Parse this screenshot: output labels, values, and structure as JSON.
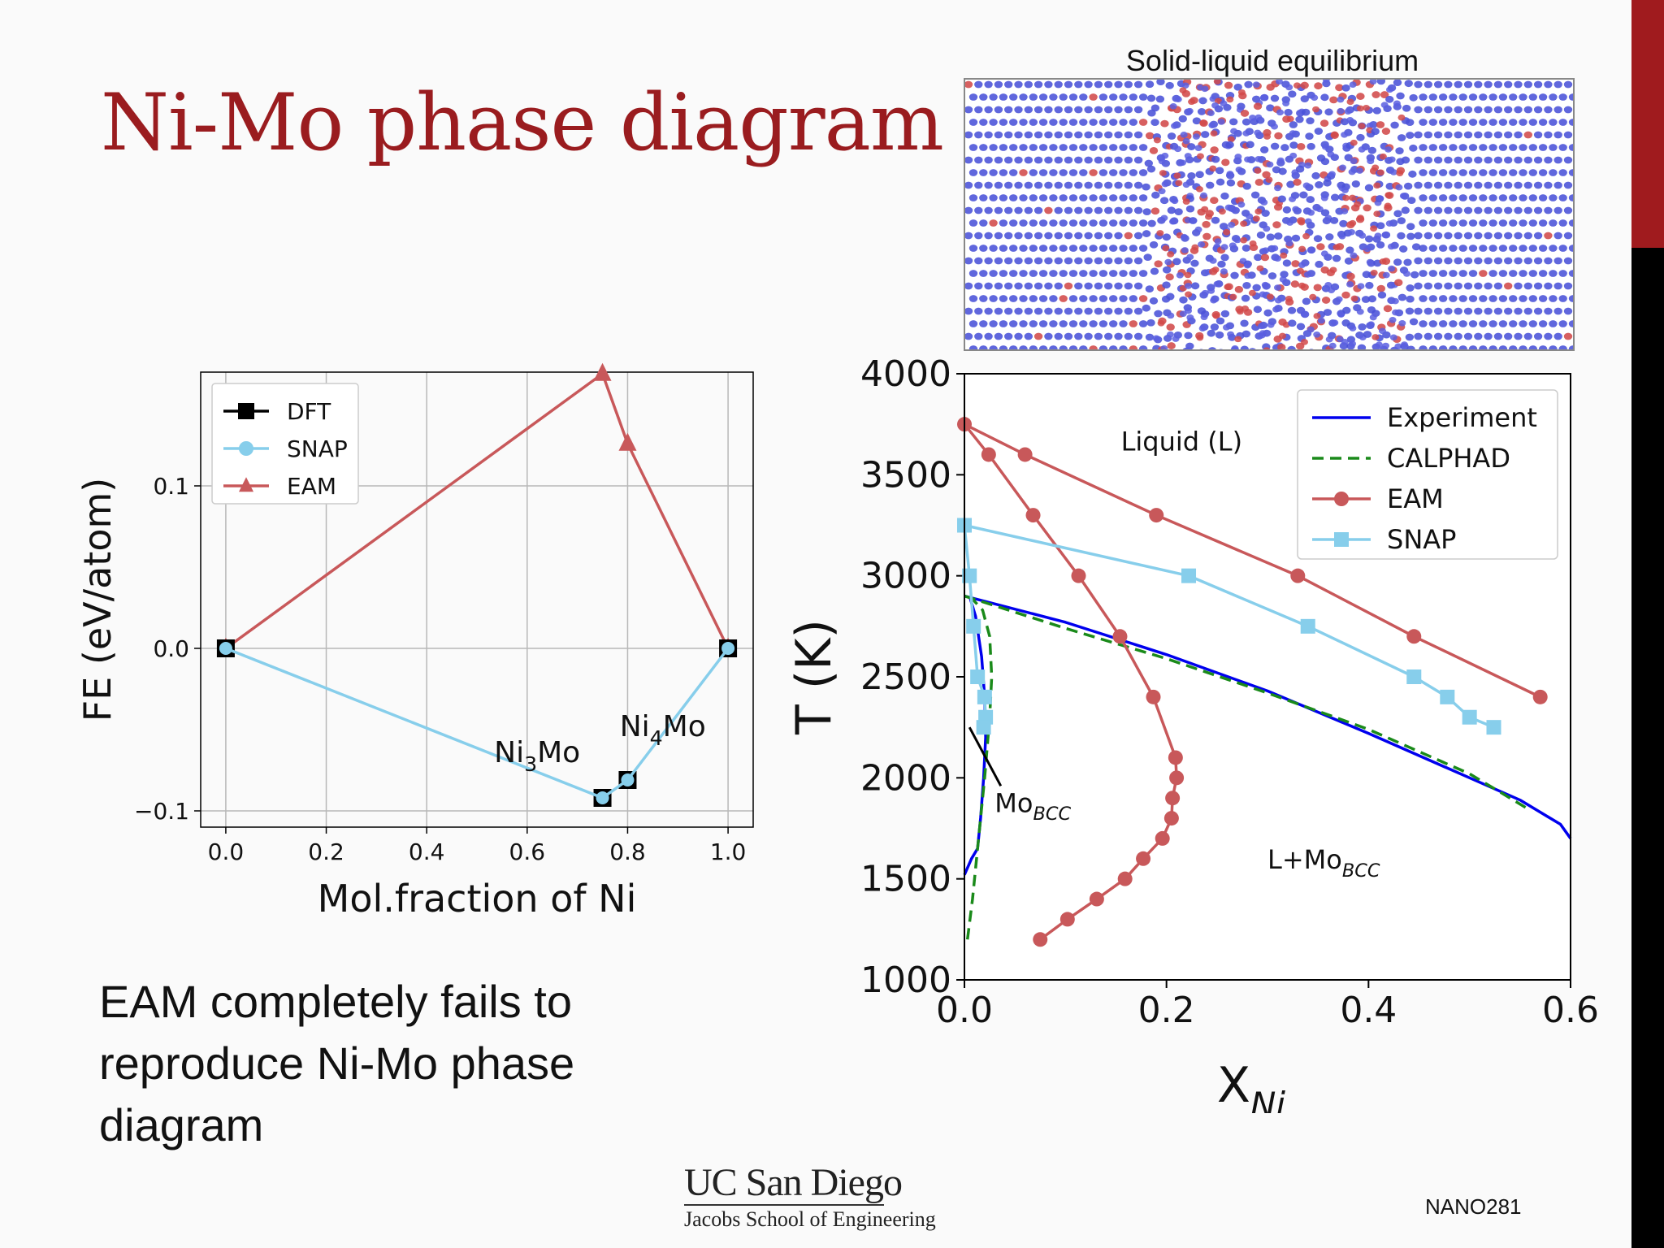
{
  "slide": {
    "title": "Ni-Mo phase diagram",
    "body_text": "EAM completely fails to reproduce Ni-Mo phase diagram",
    "logo_main": "UC San Diego",
    "logo_sub": "Jacobs School of Engineering",
    "course": "NANO281",
    "sim_caption": "Solid-liquid equilibrium",
    "accent_color": "#9a1c1f"
  },
  "chart_data": [
    {
      "type": "line",
      "xlabel": "Mol.fraction of Ni",
      "ylabel": "FE (eV/atom)",
      "xlim": [
        -0.05,
        1.05
      ],
      "ylim": [
        -0.11,
        0.17
      ],
      "xticks": [
        "0.0",
        "0.2",
        "0.4",
        "0.6",
        "0.8",
        "1.0"
      ],
      "yticks": [
        "−0.1",
        "0.0",
        "0.1"
      ],
      "grid": true,
      "legend_position": "top-left",
      "series": [
        {
          "name": "DFT",
          "color": "#000000",
          "marker": "square",
          "x": [
            0.0,
            0.75,
            0.8,
            1.0
          ],
          "y": [
            0.0,
            -0.092,
            -0.081,
            0.0
          ]
        },
        {
          "name": "SNAP",
          "color": "#87ceeb",
          "marker": "circle",
          "x": [
            0.0,
            0.75,
            0.8,
            1.0
          ],
          "y": [
            0.0,
            -0.092,
            -0.081,
            0.0
          ]
        },
        {
          "name": "EAM",
          "color": "#c8585a",
          "marker": "triangle",
          "x": [
            0.0,
            0.75,
            0.8,
            1.0
          ],
          "y": [
            0.0,
            0.169,
            0.126,
            0.0
          ]
        }
      ],
      "annotations": [
        {
          "base": "Ni",
          "sub": "3",
          "rest": "Mo",
          "x": 0.62,
          "y": -0.07
        },
        {
          "base": "Ni",
          "sub": "4",
          "rest": "Mo",
          "x": 0.87,
          "y": -0.054
        }
      ]
    },
    {
      "type": "line",
      "xlabel_base": "X",
      "xlabel_sub": "Ni",
      "ylabel": "T (K)",
      "xlim": [
        0.0,
        0.6
      ],
      "ylim": [
        1000,
        4000
      ],
      "xticks": [
        "0.0",
        "0.2",
        "0.4",
        "0.6"
      ],
      "yticks": [
        "1000",
        "1500",
        "2000",
        "2500",
        "3000",
        "3500",
        "4000"
      ],
      "grid": false,
      "legend_position": "top-right",
      "series": [
        {
          "name": "Experiment",
          "color": "#0000ee",
          "style": "solid",
          "segments": [
            [
              [
                0.0,
                2900
              ],
              [
                0.1,
                2770
              ],
              [
                0.2,
                2610
              ],
              [
                0.3,
                2430
              ],
              [
                0.4,
                2220
              ],
              [
                0.5,
                2000
              ],
              [
                0.55,
                1890
              ],
              [
                0.59,
                1770
              ],
              [
                0.6,
                1700
              ]
            ],
            [
              [
                0.0,
                1520
              ],
              [
                0.007,
                1600
              ],
              [
                0.013,
                1650
              ],
              [
                0.016,
                1800
              ],
              [
                0.019,
                2000
              ],
              [
                0.021,
                2200
              ],
              [
                0.02,
                2400
              ],
              [
                0.017,
                2600
              ],
              [
                0.011,
                2800
              ],
              [
                0.005,
                2900
              ]
            ]
          ]
        },
        {
          "name": "CALPHAD",
          "color": "#1a8a1a",
          "style": "dashed",
          "segments": [
            [
              [
                0.0,
                2900
              ],
              [
                0.1,
                2740
              ],
              [
                0.2,
                2590
              ],
              [
                0.3,
                2420
              ],
              [
                0.4,
                2240
              ],
              [
                0.5,
                2020
              ],
              [
                0.56,
                1840
              ]
            ],
            [
              [
                0.003,
                1200
              ],
              [
                0.008,
                1400
              ],
              [
                0.014,
                1700
              ],
              [
                0.02,
                2000
              ],
              [
                0.025,
                2300
              ],
              [
                0.027,
                2500
              ],
              [
                0.025,
                2700
              ],
              [
                0.018,
                2830
              ],
              [
                0.007,
                2890
              ]
            ]
          ]
        },
        {
          "name": "EAM",
          "color": "#c8585a",
          "style": "solid",
          "marker": "circle",
          "segments": [
            [
              [
                0.0,
                3750
              ],
              [
                0.06,
                3600
              ],
              [
                0.19,
                3300
              ],
              [
                0.33,
                3000
              ],
              [
                0.445,
                2700
              ],
              [
                0.57,
                2400
              ]
            ],
            [
              [
                0.0,
                3750
              ],
              [
                0.024,
                3600
              ],
              [
                0.068,
                3300
              ],
              [
                0.113,
                3000
              ],
              [
                0.154,
                2700
              ],
              [
                0.187,
                2400
              ],
              [
                0.209,
                2100
              ],
              [
                0.21,
                2000
              ],
              [
                0.206,
                1900
              ],
              [
                0.205,
                1800
              ],
              [
                0.196,
                1700
              ],
              [
                0.177,
                1600
              ],
              [
                0.159,
                1500
              ],
              [
                0.131,
                1400
              ],
              [
                0.102,
                1300
              ],
              [
                0.075,
                1200
              ]
            ]
          ]
        },
        {
          "name": "SNAP",
          "color": "#87ceeb",
          "style": "solid",
          "marker": "square",
          "segments": [
            [
              [
                0.0,
                3250
              ],
              [
                0.222,
                3000
              ],
              [
                0.34,
                2750
              ],
              [
                0.445,
                2500
              ],
              [
                0.478,
                2400
              ],
              [
                0.5,
                2300
              ],
              [
                0.524,
                2250
              ]
            ],
            [
              [
                0.0,
                3250
              ],
              [
                0.005,
                3000
              ],
              [
                0.009,
                2750
              ],
              [
                0.013,
                2500
              ],
              [
                0.02,
                2400
              ],
              [
                0.021,
                2300
              ],
              [
                0.019,
                2250
              ]
            ]
          ]
        }
      ],
      "annotations": [
        {
          "text": "Liquid (L)",
          "x": 0.215,
          "y": 3620
        },
        {
          "base": "Mo",
          "sub": "BCC",
          "x": 0.03,
          "y": 1830
        },
        {
          "base": "L+Mo",
          "sub": "BCC",
          "x": 0.3,
          "y": 1550
        }
      ],
      "pointer": {
        "from": [
          0.036,
          1960
        ],
        "to": [
          0.005,
          2250
        ]
      }
    }
  ]
}
